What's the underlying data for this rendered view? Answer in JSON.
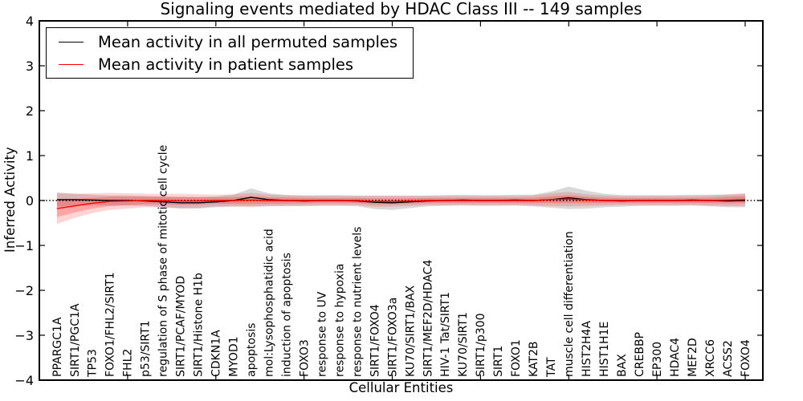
{
  "title": "Signaling events mediated by HDAC Class III -- 149 samples",
  "axes": {
    "xlabel": "Cellular Entities",
    "ylabel": "Inferred Activity",
    "yticks": [
      "4",
      "3",
      "2",
      "1",
      "0",
      "−1",
      "−2",
      "−3",
      "−4"
    ]
  },
  "legend": {
    "items": [
      {
        "label": "Mean activity in all permuted samples",
        "color": "#000000"
      },
      {
        "label": "Mean activity in patient samples",
        "color": "#ff0000"
      }
    ]
  },
  "chart_data": {
    "type": "line",
    "title": "Signaling events mediated by HDAC Class III -- 149 samples",
    "xlabel": "Cellular Entities",
    "ylabel": "Inferred Activity",
    "ylim": [
      -4,
      4
    ],
    "xlim": [
      0,
      41
    ],
    "x_tick_positions": [
      5,
      10,
      15,
      20,
      25,
      30,
      35,
      40
    ],
    "zero_line": {
      "style": "dotted",
      "color": "#000000",
      "y": 0
    },
    "categories": [
      "PPARGC1A",
      "SIRT1/PGC1A",
      "TP53",
      "FOXO1/FHL2/SIRT1",
      "FHL2",
      "p53/SIRT1",
      "regulation of S phase of mitotic cell cycle",
      "SIRT1/PCAF/MYOD",
      "SIRT1/Histone H1b",
      "CDKN1A",
      "MYOD1",
      "apoptosis",
      "mol:Lysophosphatidic acid",
      "induction of apoptosis",
      "FOXO3",
      "response to UV",
      "response to hypoxia",
      "response to nutrient levels",
      "SIRT1/FOXO4",
      "SIRT1/FOXO3a",
      "KU70/SIRT1/BAX",
      "SIRT1/MEF2D/HDAC4",
      "HIV-1 Tat/SIRT1",
      "KU70/SIRT1",
      "SIRT1/p300",
      "SIRT1",
      "FOXO1",
      "KAT2B",
      "TAT",
      "muscle cell differentiation",
      "HIST2H4A",
      "HIST1H1E",
      "BAX",
      "CREBBP",
      "EP300",
      "HDAC4",
      "MEF2D",
      "XRCC6",
      "ACSS2",
      "FOXO4"
    ],
    "series": [
      {
        "name": "Mean activity in all permuted samples",
        "color": "#000000",
        "band_fill": "#999999",
        "band_opacity": 0.38,
        "values": [
          0.02,
          0.02,
          0.01,
          0.0,
          0.0,
          -0.01,
          -0.03,
          -0.05,
          -0.05,
          -0.03,
          0.0,
          0.07,
          0.02,
          0.0,
          -0.01,
          0.0,
          0.0,
          -0.01,
          -0.04,
          -0.05,
          -0.03,
          -0.01,
          0.0,
          0.01,
          0.0,
          0.0,
          0.01,
          0.0,
          0.02,
          0.06,
          0.02,
          0.0,
          -0.01,
          0.0,
          0.0,
          0.0,
          0.01,
          0.0,
          -0.01,
          0.0
        ],
        "band": [
          0.16,
          0.13,
          0.12,
          0.11,
          0.11,
          0.11,
          0.12,
          0.13,
          0.13,
          0.12,
          0.13,
          0.2,
          0.14,
          0.12,
          0.12,
          0.12,
          0.12,
          0.12,
          0.15,
          0.16,
          0.14,
          0.12,
          0.12,
          0.12,
          0.12,
          0.12,
          0.12,
          0.13,
          0.18,
          0.25,
          0.2,
          0.15,
          0.13,
          0.12,
          0.12,
          0.12,
          0.12,
          0.13,
          0.14,
          0.15
        ]
      },
      {
        "name": "Mean activity in patient samples",
        "color": "#ff0000",
        "band_fill": "#ff0000",
        "band_opacity": 0.17,
        "band_inner_scale": 0.55,
        "band_inner_opacity": 0.22,
        "values": [
          -0.18,
          -0.12,
          -0.06,
          -0.02,
          -0.01,
          0.0,
          0.0,
          -0.01,
          -0.01,
          0.0,
          0.0,
          0.01,
          0.0,
          0.0,
          0.0,
          0.0,
          0.0,
          0.0,
          -0.02,
          -0.02,
          -0.01,
          0.0,
          0.0,
          0.0,
          0.0,
          0.0,
          0.0,
          0.0,
          0.02,
          0.03,
          0.01,
          0.0,
          0.0,
          0.0,
          0.0,
          0.0,
          0.0,
          0.0,
          0.01,
          0.02
        ],
        "band": [
          0.34,
          0.27,
          0.22,
          0.19,
          0.17,
          0.15,
          0.15,
          0.16,
          0.15,
          0.13,
          0.14,
          0.16,
          0.13,
          0.12,
          0.11,
          0.1,
          0.1,
          0.1,
          0.12,
          0.12,
          0.11,
          0.1,
          0.1,
          0.1,
          0.1,
          0.1,
          0.1,
          0.11,
          0.14,
          0.16,
          0.13,
          0.11,
          0.1,
          0.1,
          0.1,
          0.1,
          0.1,
          0.11,
          0.13,
          0.14
        ]
      }
    ]
  }
}
